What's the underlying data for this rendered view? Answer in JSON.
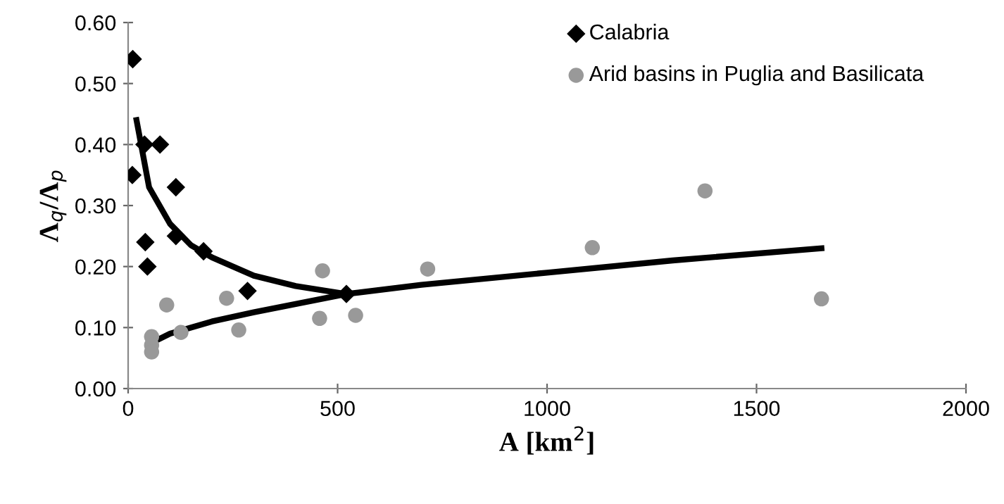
{
  "chart_data": {
    "type": "scatter",
    "xlabel": "A [km$^{2}$]",
    "ylabel": "Λ$_{q}$/Λ$_{p}$",
    "xlim": [
      0,
      2000
    ],
    "xticks": [
      0,
      500,
      1000,
      1500,
      2000
    ],
    "ylim": [
      0,
      0.6
    ],
    "yticks": [
      {
        "value": 0,
        "label": "0.00"
      },
      {
        "value": 0.1,
        "label": "0.10"
      },
      {
        "value": 0.2,
        "label": "0.20"
      },
      {
        "value": 0.3,
        "label": "0.30"
      },
      {
        "value": 0.4,
        "label": "0.40"
      },
      {
        "value": 0.5,
        "label": "0.50"
      },
      {
        "value": 0.6,
        "label": "0.60"
      }
    ],
    "grid": false,
    "legend": "top right",
    "series": [
      {
        "name": "Calabria",
        "marker": "diamond",
        "color": "#000000",
        "x": [
          11,
          10,
          39,
          76,
          114,
          114,
          41,
          46,
          180,
          285,
          521
        ],
        "values": [
          0.54,
          0.35,
          0.4,
          0.4,
          0.33,
          0.25,
          0.24,
          0.2,
          0.225,
          0.16,
          0.155
        ]
      },
      {
        "name": "Arid basins in Puglia and Basilicata",
        "marker": "circle",
        "color": "#999999",
        "x": [
          56,
          56,
          56,
          92,
          126,
          235,
          264,
          464,
          457,
          543,
          715,
          1108,
          1377,
          1655
        ],
        "values": [
          0.085,
          0.071,
          0.06,
          0.137,
          0.092,
          0.148,
          0.096,
          0.193,
          0.115,
          0.12,
          0.196,
          0.231,
          0.324,
          0.147
        ]
      },
      {
        "type": "line",
        "marker": "none",
        "line_style": "solid",
        "color": "#000000",
        "x": [
          20,
          50,
          100,
          150,
          200,
          300,
          400,
          521
        ],
        "values": [
          0.44,
          0.33,
          0.27,
          0.235,
          0.215,
          0.185,
          0.168,
          0.155
        ]
      },
      {
        "type": "line",
        "marker": "none",
        "line_style": "solid",
        "color": "#000000",
        "x": [
          56,
          100,
          200,
          300,
          521,
          700,
          1000,
          1300,
          1655
        ],
        "values": [
          0.075,
          0.09,
          0.11,
          0.125,
          0.155,
          0.17,
          0.19,
          0.21,
          0.23
        ]
      }
    ]
  }
}
